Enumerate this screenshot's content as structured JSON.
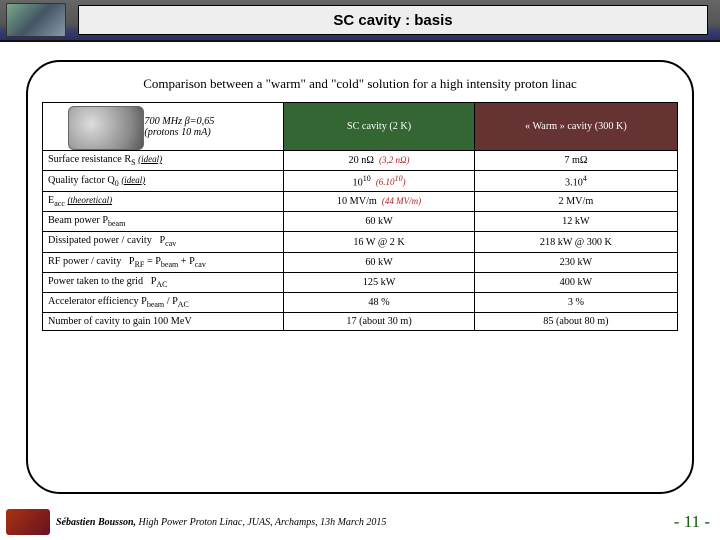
{
  "header": {
    "title": "SC cavity : basis"
  },
  "subtitle": "Comparison between a \"warm\" and \"cold\" solution for a high intensity proton linac",
  "table": {
    "hdr_cavity_line1": "Cavity: 700 MHz β=0,65",
    "hdr_cavity_line2": "5 cells (protons 10 mA)",
    "hdr_sc": "SC cavity (2 K)",
    "hdr_warm": "« Warm » cavity (300 K)",
    "rows": [
      {
        "label_html": "Surface resistance R<span class='sub'>S</span> <span class='ideal'>(ideal)</span>",
        "sc_html": "20 nΩ &nbsp;<span class='red'>(3,2 nΩ)</span>",
        "warm_html": "7 mΩ"
      },
      {
        "label_html": "Quality factor Q<span class='sub'>0</span> <span class='ideal'>(ideal)</span>",
        "sc_html": "10<span class='sup'>10</span> &nbsp;<span class='red'>(6.10<span class='sup'>10</span>)</span>",
        "warm_html": "3.10<span class='sup'>4</span>"
      },
      {
        "label_html": "E<span class='sub'>acc</span> <span class='ideal'>(theoretical)</span>",
        "sc_html": "10 MV/m &nbsp;<span class='red'>(44 MV/m)</span>",
        "warm_html": "2 MV/m"
      },
      {
        "label_html": "Beam power P<span class='sub'>beam</span>",
        "sc_html": "60 kW",
        "warm_html": "12 kW"
      },
      {
        "label_html": "Dissipated power / cavity &nbsp; P<span class='sub'>cav</span>",
        "sc_html": "16 W @ 2 K",
        "warm_html": "218 kW @ 300 K"
      },
      {
        "label_html": "RF power / cavity &nbsp; P<span class='sub'>RF</span> = P<span class='sub'>beam</span> + P<span class='sub'>cav</span>",
        "sc_html": "60 kW",
        "warm_html": "230 kW"
      },
      {
        "label_html": "Power taken to the grid &nbsp; P<span class='sub'>AC</span>",
        "sc_html": "125 kW",
        "warm_html": "400 kW"
      },
      {
        "label_html": "Accelerator efficiency P<span class='sub'>beam</span> / P<span class='sub'>AC</span>",
        "sc_html": "48 %",
        "warm_html": "3 %"
      },
      {
        "label_html": "Number of cavity to gain 100 MeV",
        "sc_html": "17 (about 30 m)",
        "warm_html": "85 (about 80 m)"
      }
    ]
  },
  "footer": {
    "author": "Sébastien Bousson,",
    "rest": " High Power Proton Linac, JUAS, Archamps, 13h March 2015",
    "page": "- 11 -"
  },
  "colors": {
    "sc_header_bg": "#336633",
    "warm_header_bg": "#663333",
    "page_no_color": "#0a5a0a"
  }
}
